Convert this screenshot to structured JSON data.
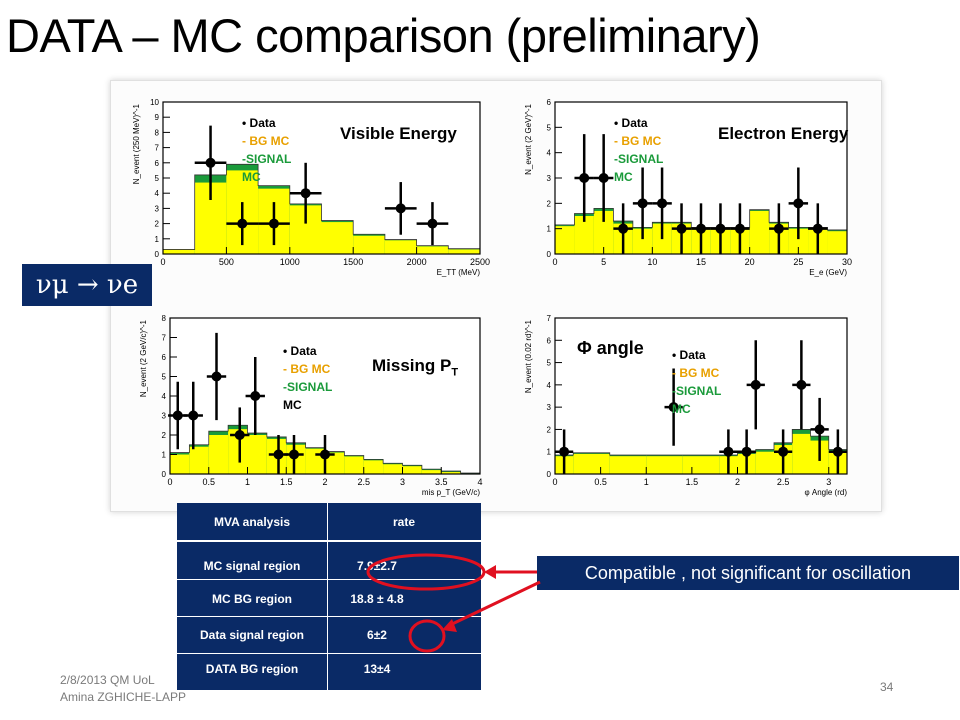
{
  "slide": {
    "title": "DATA – MC comparison (preliminary)",
    "footer_line1": "2/8/2013 QM UoL",
    "footer_line2": "Amina ZGHICHE-LAPP",
    "page_number": "34",
    "channel_label": "νμ → νe",
    "callout": "Compatible , not significant for oscillation"
  },
  "legend": {
    "data": "Data",
    "bg": "- BG MC",
    "signal_1": "-SIGNAL",
    "signal_2": "MC"
  },
  "colors": {
    "bg_mc": "#ffff00",
    "signal_mc": "#1a9a3a",
    "data": "#000000",
    "accent_box": "#0a2a66",
    "highlight": "#e01020"
  },
  "mva_table": {
    "headers": [
      "MVA analysis",
      "rate"
    ],
    "rows": [
      [
        "MC  signal region",
        "7.9±2.7"
      ],
      [
        "MC BG region",
        "18.8 ± 4.8"
      ],
      [
        "Data signal region",
        "6±2"
      ],
      [
        "DATA BG region",
        "13±4"
      ]
    ]
  },
  "chart_data": [
    {
      "type": "bar",
      "title": "Visible Energy",
      "xlabel": "E_TT (MeV)",
      "ylabel": "N_event (250 MeV)^-1",
      "xlim": [
        0,
        2500
      ],
      "ylim": [
        0,
        10
      ],
      "xticks": [
        0,
        500,
        1000,
        1500,
        2000,
        2500
      ],
      "yticks": [
        0,
        1,
        2,
        3,
        4,
        5,
        6,
        7,
        8,
        9,
        10
      ],
      "bin_edges": [
        0,
        250,
        500,
        750,
        1000,
        1250,
        1500,
        1750,
        2000,
        2250,
        2500
      ],
      "bg_mc": [
        0.3,
        4.7,
        5.5,
        4.3,
        3.2,
        2.1,
        1.2,
        0.9,
        0.5,
        0.3
      ],
      "signal_mc": [
        0.3,
        5.2,
        5.9,
        4.5,
        3.3,
        2.2,
        1.3,
        0.95,
        0.55,
        0.35
      ],
      "data": {
        "x": [
          375,
          625,
          875,
          1125,
          1875,
          2125
        ],
        "y": [
          6,
          2,
          2,
          4,
          3,
          2
        ]
      }
    },
    {
      "type": "bar",
      "title": "Electron Energy",
      "xlabel": "E_e (GeV)",
      "ylabel": "N_event (2 GeV)^-1",
      "xlim": [
        0,
        30
      ],
      "ylim": [
        0,
        6
      ],
      "xticks": [
        0,
        5,
        10,
        15,
        20,
        25,
        30
      ],
      "yticks": [
        0,
        1,
        2,
        3,
        4,
        5,
        6
      ],
      "bin_edges": [
        0,
        2,
        4,
        6,
        8,
        10,
        12,
        14,
        16,
        18,
        20,
        22,
        24,
        26,
        28,
        30
      ],
      "bg_mc": [
        1.1,
        1.5,
        1.7,
        1.2,
        1.0,
        1.2,
        1.2,
        1.0,
        1.0,
        1.0,
        1.7,
        1.2,
        1.0,
        1.0,
        0.9
      ],
      "signal_mc": [
        1.15,
        1.6,
        1.8,
        1.3,
        1.05,
        1.25,
        1.25,
        1.05,
        1.05,
        1.05,
        1.75,
        1.25,
        1.05,
        1.05,
        0.95
      ],
      "data": {
        "x": [
          3,
          5,
          7,
          9,
          11,
          13,
          15,
          17,
          19,
          23,
          25,
          27
        ],
        "y": [
          3,
          3,
          1,
          2,
          2,
          1,
          1,
          1,
          1,
          1,
          2,
          1
        ]
      }
    },
    {
      "type": "bar",
      "title": "Missing P_T",
      "xlabel": "mis p_T (GeV/c)",
      "ylabel": "N_event (2 GeV/c)^-1",
      "xlim": [
        0,
        4
      ],
      "ylim": [
        0,
        8
      ],
      "xticks": [
        0,
        0.5,
        1,
        1.5,
        2,
        2.5,
        3,
        3.5,
        4
      ],
      "yticks": [
        0,
        1,
        2,
        3,
        4,
        5,
        6,
        7,
        8
      ],
      "bin_edges": [
        0,
        0.25,
        0.5,
        0.75,
        1,
        1.25,
        1.5,
        1.75,
        2,
        2.25,
        2.5,
        2.75,
        3,
        3.25,
        3.5,
        3.75,
        4
      ],
      "bg_mc": [
        1.0,
        1.4,
        2.0,
        2.3,
        2.0,
        1.8,
        1.5,
        1.3,
        1.1,
        0.9,
        0.7,
        0.5,
        0.4,
        0.2,
        0.1,
        0.0
      ],
      "signal_mc": [
        1.1,
        1.5,
        2.2,
        2.5,
        2.1,
        1.9,
        1.6,
        1.35,
        1.15,
        0.95,
        0.75,
        0.55,
        0.45,
        0.25,
        0.15,
        0.05
      ],
      "data": {
        "x": [
          0.1,
          0.3,
          0.6,
          0.9,
          1.1,
          1.4,
          1.6,
          2.0
        ],
        "y": [
          3,
          3,
          5,
          2,
          4,
          1,
          1,
          1
        ]
      }
    },
    {
      "type": "bar",
      "title": "Φ angle",
      "xlabel": "φ Angle (rd)",
      "ylabel": "N_event (0.02 rd)^-1",
      "xlim": [
        0,
        3.2
      ],
      "ylim": [
        0,
        7
      ],
      "xticks": [
        0,
        0.5,
        1,
        1.5,
        2,
        2.5,
        3
      ],
      "yticks": [
        0,
        1,
        2,
        3,
        4,
        5,
        6,
        7
      ],
      "bin_edges": [
        0,
        0.2,
        0.4,
        0.6,
        0.8,
        1.0,
        1.2,
        1.4,
        1.6,
        1.8,
        2.0,
        2.2,
        2.4,
        2.6,
        2.8,
        3.0,
        3.2
      ],
      "bg_mc": [
        0.8,
        0.9,
        0.9,
        0.8,
        0.8,
        0.8,
        0.8,
        0.8,
        0.8,
        0.8,
        0.9,
        1.0,
        1.3,
        1.8,
        1.5,
        1.0
      ],
      "signal_mc": [
        0.85,
        0.95,
        0.95,
        0.85,
        0.85,
        0.85,
        0.85,
        0.85,
        0.85,
        0.85,
        0.95,
        1.1,
        1.4,
        2.0,
        1.7,
        1.1
      ],
      "data": {
        "x": [
          0.1,
          1.3,
          1.9,
          2.1,
          2.2,
          2.5,
          2.7,
          2.9,
          3.1
        ],
        "y": [
          1,
          3,
          1,
          1,
          4,
          1,
          4,
          2,
          1
        ]
      }
    }
  ]
}
